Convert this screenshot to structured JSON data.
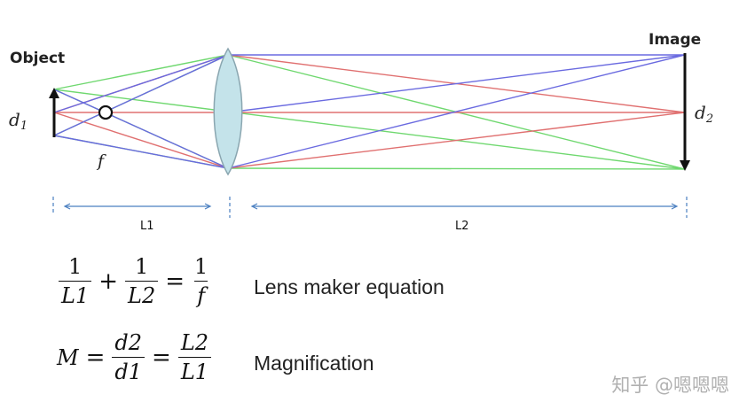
{
  "labels": {
    "object": "Object",
    "image": "Image",
    "d1_var": "d",
    "d1_sub": "1",
    "d2_var": "d",
    "d2_sub": "2",
    "f": "f",
    "L1": "L1",
    "L2": "L2"
  },
  "equations": {
    "lens": {
      "frac1_num": "1",
      "frac1_den": "L1",
      "plus": "+",
      "frac2_num": "1",
      "frac2_den": "L2",
      "equals": "=",
      "frac3_num": "1",
      "frac3_den": "f",
      "name": "Lens maker equation"
    },
    "magnification": {
      "M": "M",
      "equals1": "=",
      "frac1_num": "d2",
      "frac1_den": "d1",
      "equals2": "=",
      "frac2_num": "L2",
      "frac2_den": "L1",
      "name": "Magnification"
    }
  },
  "watermark": "知乎 @嗯嗯嗯",
  "colors": {
    "ray_green": "#6fd86f",
    "ray_red": "#e07070",
    "ray_blue": "#6a6ae0",
    "lens_fill": "#c4e3ea",
    "lens_stroke": "#8aa6b0",
    "dimension_line": "#4a7fc0"
  }
}
